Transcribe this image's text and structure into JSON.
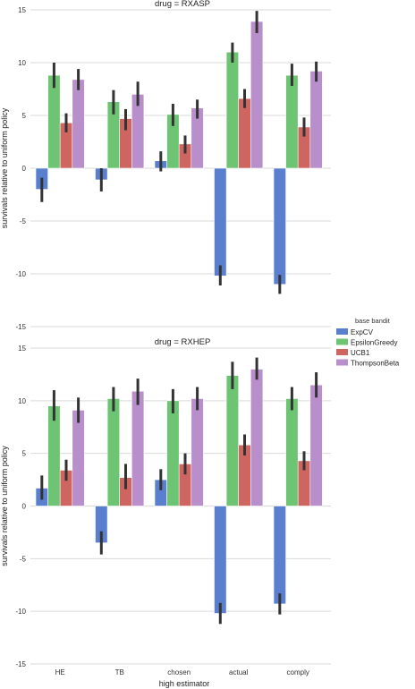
{
  "chart_data": [
    {
      "type": "bar",
      "title": "drug = RXASP",
      "ylabel": "survivals relative to uniform policy",
      "xlabel": "",
      "categories": [
        "HE",
        "TB",
        "chosen",
        "actual",
        "comply"
      ],
      "ylim": [
        -15,
        15
      ],
      "yticks": [
        -15,
        -10,
        -5,
        0,
        5,
        10,
        15
      ],
      "ytick_labels": [
        "-15",
        "-10",
        "-5",
        "0",
        "5",
        "10",
        "15"
      ],
      "grid": true,
      "series": [
        {
          "name": "ExpCV",
          "values": [
            -2.0,
            -1.1,
            0.7,
            -10.2,
            -11.0
          ],
          "err_low": [
            -3.2,
            -2.2,
            -0.3,
            -11.1,
            -11.9
          ],
          "err_high": [
            -0.9,
            0.0,
            1.6,
            -9.2,
            -10.1
          ]
        },
        {
          "name": "EpsilonGreedy",
          "values": [
            8.8,
            6.3,
            5.1,
            11.0,
            8.8
          ],
          "err_low": [
            7.6,
            5.1,
            4.0,
            10.0,
            7.8
          ],
          "err_high": [
            10.0,
            7.4,
            6.1,
            11.9,
            9.9
          ]
        },
        {
          "name": "UCB1",
          "values": [
            4.3,
            4.7,
            2.3,
            6.6,
            3.9
          ],
          "err_low": [
            3.4,
            3.6,
            1.4,
            5.7,
            3.0
          ],
          "err_high": [
            5.2,
            5.6,
            3.1,
            7.5,
            4.8
          ]
        },
        {
          "name": "ThompsonBeta",
          "values": [
            8.4,
            7.0,
            5.7,
            13.9,
            9.2
          ],
          "err_low": [
            7.4,
            5.9,
            4.7,
            12.8,
            8.2
          ],
          "err_high": [
            9.4,
            8.2,
            6.5,
            14.9,
            10.1
          ]
        }
      ]
    },
    {
      "type": "bar",
      "title": "drug = RXHEP",
      "ylabel": "survivals relative to uniform policy",
      "xlabel": "high estimator",
      "categories": [
        "HE",
        "TB",
        "chosen",
        "actual",
        "comply"
      ],
      "ylim": [
        -15,
        15
      ],
      "yticks": [
        -15,
        -10,
        -5,
        0,
        5,
        10,
        15
      ],
      "ytick_labels": [
        "-15",
        "-10",
        "-5",
        "0",
        "5",
        "10",
        "15"
      ],
      "grid": true,
      "series": [
        {
          "name": "ExpCV",
          "values": [
            1.7,
            -3.5,
            2.5,
            -10.2,
            -9.3
          ],
          "err_low": [
            0.6,
            -4.6,
            1.5,
            -11.2,
            -10.3
          ],
          "err_high": [
            2.9,
            -2.4,
            3.5,
            -9.2,
            -8.3
          ]
        },
        {
          "name": "EpsilonGreedy",
          "values": [
            9.5,
            10.2,
            10.0,
            12.4,
            10.2
          ],
          "err_low": [
            8.1,
            9.0,
            8.8,
            11.1,
            9.1
          ],
          "err_high": [
            11.0,
            11.3,
            11.1,
            13.7,
            11.3
          ]
        },
        {
          "name": "UCB1",
          "values": [
            3.4,
            2.7,
            4.0,
            5.8,
            4.3
          ],
          "err_low": [
            2.4,
            1.6,
            3.0,
            4.8,
            3.4
          ],
          "err_high": [
            4.4,
            4.0,
            5.0,
            6.8,
            5.2
          ]
        },
        {
          "name": "ThompsonBeta",
          "values": [
            9.1,
            10.9,
            10.2,
            13.0,
            11.5
          ],
          "err_low": [
            7.9,
            9.6,
            9.1,
            12.0,
            10.3
          ],
          "err_high": [
            10.3,
            12.1,
            11.3,
            14.1,
            12.7
          ]
        }
      ]
    }
  ],
  "legend": {
    "title": "base bandit",
    "placement": "right",
    "items": [
      {
        "label": "ExpCV",
        "color": "#4c72b0"
      },
      {
        "label": "EpsilonGreedy",
        "color": "#55a868"
      },
      {
        "label": "UCB1",
        "color": "#c44e52"
      },
      {
        "label": "ThompsonBeta",
        "color": "#8172b2"
      }
    ]
  },
  "colors": {
    "ExpCV": "#4c72b0",
    "EpsilonGreedy": "#55a868",
    "UCB1": "#c44e52",
    "ThompsonBeta": "#8172b2"
  }
}
